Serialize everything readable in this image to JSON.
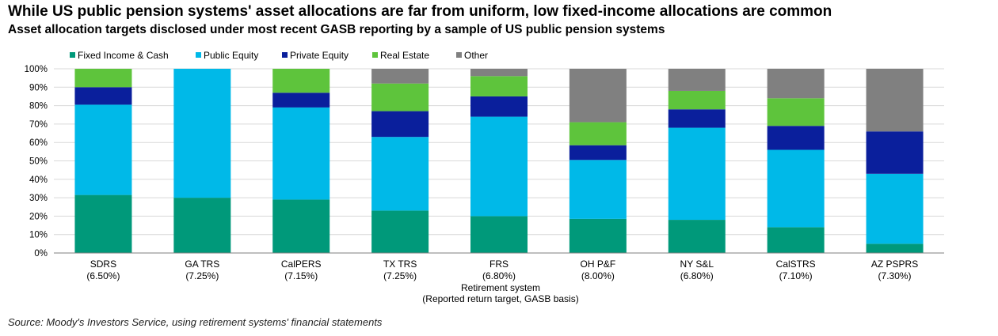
{
  "title": "While US public pension systems' asset allocations are far from uniform, low fixed-income allocations are common",
  "subtitle": "Asset allocation targets disclosed under most recent GASB reporting by a sample of US public pension systems",
  "source": "Source: Moody's Investors Service, using retirement systems' financial statements",
  "colors": {
    "grid": "#d9d9d9",
    "axis": "#7f7f7f"
  },
  "chart_data": {
    "type": "bar",
    "stacked": true,
    "title": "",
    "xlabel_lines": [
      "Retirement system",
      "(Reported return target, GASB basis)"
    ],
    "ylabel": "",
    "ylim": [
      0,
      100
    ],
    "yticks": [
      "0%",
      "10%",
      "20%",
      "30%",
      "40%",
      "50%",
      "60%",
      "70%",
      "80%",
      "90%",
      "100%"
    ],
    "grid": true,
    "legend_position": "top",
    "categories": [
      {
        "name": "SDRS",
        "target": "(6.50%)"
      },
      {
        "name": "GA TRS",
        "target": "(7.25%)"
      },
      {
        "name": "CalPERS",
        "target": "(7.15%)"
      },
      {
        "name": "TX TRS",
        "target": "(7.25%)"
      },
      {
        "name": "FRS",
        "target": "(6.80%)"
      },
      {
        "name": "OH P&F",
        "target": "(8.00%)"
      },
      {
        "name": "NY S&L",
        "target": "(6.80%)"
      },
      {
        "name": "CalSTRS",
        "target": "(7.10%)"
      },
      {
        "name": "AZ PSPRS",
        "target": "(7.30%)"
      }
    ],
    "series": [
      {
        "name": "Fixed Income & Cash",
        "color": "#00997a",
        "values": [
          31.5,
          30,
          29,
          23,
          20,
          18.5,
          18,
          14,
          5
        ]
      },
      {
        "name": "Public Equity",
        "color": "#00b9e8",
        "values": [
          49,
          70,
          50,
          40,
          54,
          32,
          50,
          42,
          38
        ]
      },
      {
        "name": "Private Equity",
        "color": "#0a1f9c",
        "values": [
          9.5,
          0,
          8,
          14,
          11,
          8,
          10,
          13,
          23
        ]
      },
      {
        "name": "Real Estate",
        "color": "#5ec43c",
        "values": [
          10,
          0,
          13,
          15,
          11,
          12.5,
          10,
          15,
          0
        ]
      },
      {
        "name": "Other",
        "color": "#808080",
        "values": [
          0,
          0,
          0,
          8,
          4,
          29,
          12,
          16,
          34
        ]
      }
    ]
  }
}
